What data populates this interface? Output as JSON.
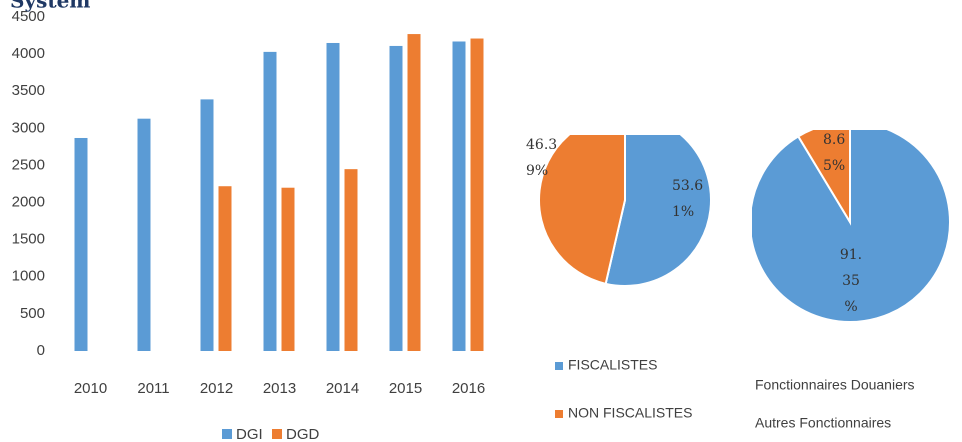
{
  "chart_data": [
    {
      "type": "bar",
      "title": "System",
      "categories": [
        "2010",
        "2011",
        "2012",
        "2013",
        "2014",
        "2015",
        "2016"
      ],
      "series": [
        {
          "name": "DGI",
          "color": "#5b9bd5",
          "values": [
            2870,
            3130,
            3390,
            4030,
            4150,
            4110,
            4170
          ]
        },
        {
          "name": "DGD",
          "color": "#ed7d31",
          "values": [
            null,
            null,
            2220,
            2200,
            2450,
            4270,
            4210
          ]
        }
      ],
      "ylim": [
        0,
        4500
      ],
      "yticks": [
        0,
        500,
        1000,
        1500,
        2000,
        2500,
        3000,
        3500,
        4000,
        4500
      ],
      "grid": false
    },
    {
      "type": "pie",
      "categories": [
        "FISCALISTES",
        "NON FISCALISTES"
      ],
      "values": [
        53.61,
        46.39
      ],
      "value_labels": [
        "53.61%",
        "46.39%"
      ],
      "colors": [
        "#5b9bd5",
        "#ed7d31"
      ]
    },
    {
      "type": "pie",
      "categories": [
        "Fonctionnaires Douaniers",
        "Autres Fonctionnaires"
      ],
      "values": [
        91.35,
        8.65
      ],
      "value_labels": [
        "91.35%",
        "8.65%"
      ],
      "colors": [
        "#5b9bd5",
        "#ed7d31"
      ]
    }
  ]
}
